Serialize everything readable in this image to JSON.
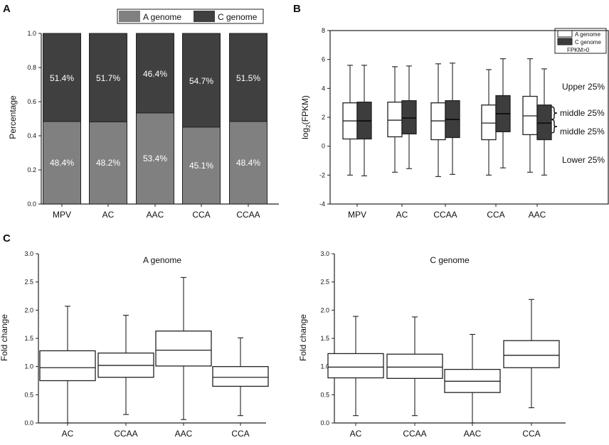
{
  "figure_labels": [
    "A",
    "B",
    "C"
  ],
  "colors": {
    "a_genome_bar": "#808080",
    "c_genome_bar": "#404040",
    "axis": "#222222",
    "box_fill_white": "#ffffff",
    "box_fill_dark": "#3d3d3d"
  },
  "chart_data": [
    {
      "id": "A",
      "type": "bar",
      "stacked": true,
      "categories": [
        "MPV",
        "AC",
        "AAC",
        "CCA",
        "CCAA"
      ],
      "series": [
        {
          "name": "A genome",
          "values": [
            0.484,
            0.482,
            0.534,
            0.451,
            0.484
          ],
          "labels": [
            "48.4%",
            "48.2%",
            "53.4%",
            "45.1%",
            "48.4%"
          ]
        },
        {
          "name": "C genome",
          "values": [
            0.514,
            0.517,
            0.464,
            0.547,
            0.515
          ],
          "labels": [
            "51.4%",
            "51.7%",
            "46.4%",
            "54.7%",
            "51.5%"
          ]
        }
      ],
      "xlabel": "",
      "ylabel": "Percentage",
      "ylim": [
        0,
        1.0
      ],
      "yticks": [
        "0.0",
        "0.2",
        "0.4",
        "0.6",
        "0.8",
        "1.0"
      ],
      "legend": [
        "A genome",
        "C genome"
      ],
      "legend_position": "top"
    },
    {
      "id": "B",
      "type": "box",
      "categories": [
        "MPV",
        "AC",
        "CCAA",
        "CCA",
        "AAC"
      ],
      "series": [
        {
          "name": "A genome",
          "boxes": [
            {
              "min": -2.0,
              "q1": 0.5,
              "median": 1.75,
              "q3": 3.0,
              "max": 5.6
            },
            {
              "min": -1.8,
              "q1": 0.65,
              "median": 1.8,
              "q3": 3.05,
              "max": 5.5
            },
            {
              "min": -2.1,
              "q1": 0.45,
              "median": 1.75,
              "q3": 3.0,
              "max": 5.7
            },
            {
              "min": -2.0,
              "q1": 0.45,
              "median": 1.6,
              "q3": 2.85,
              "max": 5.3
            },
            {
              "min": -1.8,
              "q1": 0.8,
              "median": 2.1,
              "q3": 3.45,
              "max": 6.05
            }
          ]
        },
        {
          "name": "C genome",
          "boxes": [
            {
              "min": -2.05,
              "q1": 0.5,
              "median": 1.75,
              "q3": 3.05,
              "max": 5.6
            },
            {
              "min": -1.55,
              "q1": 0.85,
              "median": 1.95,
              "q3": 3.15,
              "max": 5.55
            },
            {
              "min": -1.95,
              "q1": 0.6,
              "median": 1.85,
              "q3": 3.15,
              "max": 5.75
            },
            {
              "min": -1.5,
              "q1": 1.0,
              "median": 2.25,
              "q3": 3.5,
              "max": 6.05
            },
            {
              "min": -2.0,
              "q1": 0.45,
              "median": 1.6,
              "q3": 2.85,
              "max": 5.35
            }
          ]
        }
      ],
      "ylabel": "log",
      "ylabel_sub": "2",
      "ylabel_suffix": "(FPKM)",
      "ylim": [
        -4,
        8
      ],
      "yticks": [
        "-4",
        "-2",
        "0",
        "2",
        "4",
        "6",
        "8"
      ],
      "legend": [
        "A genome",
        "C genome"
      ],
      "legend_note": "FPKM>0",
      "legend_position": "top-right",
      "annotations": [
        "Upper 25%",
        "middle 25%",
        "middle 25%",
        "Lower 25%"
      ]
    },
    {
      "id": "C1",
      "type": "box",
      "title": "A genome",
      "categories": [
        "AC",
        "CCAA",
        "AAC",
        "CCA"
      ],
      "boxes": [
        {
          "min": 0.0,
          "q1": 0.75,
          "median": 0.98,
          "q3": 1.28,
          "max": 2.07
        },
        {
          "min": 0.15,
          "q1": 0.81,
          "median": 1.02,
          "q3": 1.24,
          "max": 1.91
        },
        {
          "min": 0.06,
          "q1": 1.01,
          "median": 1.29,
          "q3": 1.63,
          "max": 2.58
        },
        {
          "min": 0.13,
          "q1": 0.65,
          "median": 0.81,
          "q3": 1.0,
          "max": 1.51
        }
      ],
      "ylabel": "Fold change",
      "ylim": [
        0,
        3.0
      ],
      "yticks": [
        "0.0",
        "0.5",
        "1.0",
        "1.5",
        "2.0",
        "2.5",
        "3.0"
      ]
    },
    {
      "id": "C2",
      "type": "box",
      "title": "C genome",
      "categories": [
        "AC",
        "CCAA",
        "AAC",
        "CCA"
      ],
      "boxes": [
        {
          "min": 0.13,
          "q1": 0.8,
          "median": 0.99,
          "q3": 1.23,
          "max": 1.89
        },
        {
          "min": 0.13,
          "q1": 0.79,
          "median": 0.99,
          "q3": 1.22,
          "max": 1.88
        },
        {
          "min": 0.0,
          "q1": 0.54,
          "median": 0.74,
          "q3": 0.95,
          "max": 1.57
        },
        {
          "min": 0.27,
          "q1": 0.98,
          "median": 1.2,
          "q3": 1.46,
          "max": 2.19
        }
      ],
      "ylabel": "Fold change",
      "ylim": [
        0,
        3.0
      ],
      "yticks": [
        "0.0",
        "0.5",
        "1.0",
        "1.5",
        "2.0",
        "2.5",
        "3.0"
      ]
    }
  ]
}
